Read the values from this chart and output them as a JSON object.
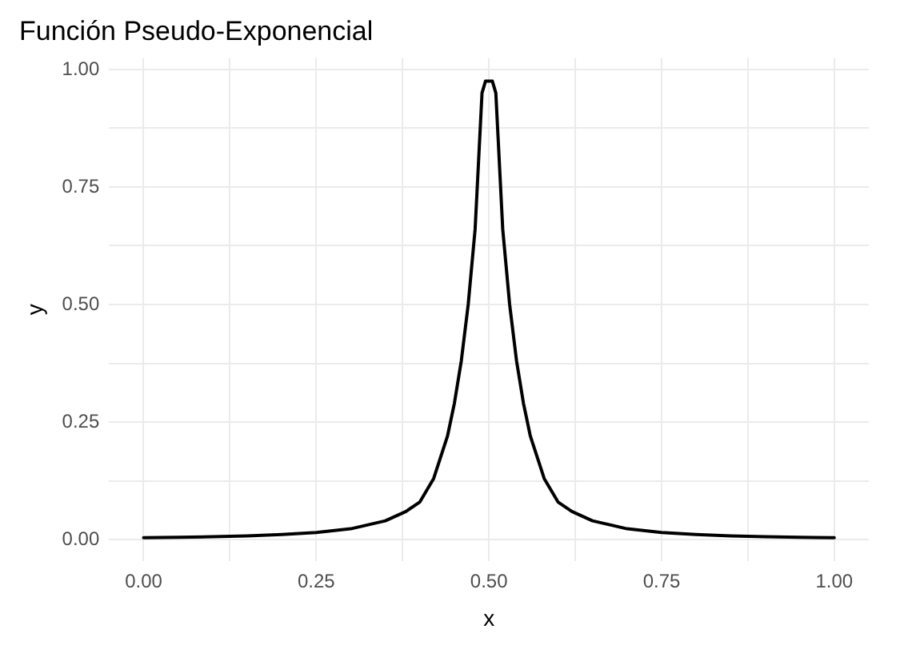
{
  "chart_data": {
    "type": "line",
    "title": "Función Pseudo-Exponencial",
    "xlabel": "x",
    "ylabel": "y",
    "grid": true,
    "legend": false,
    "marker": "none",
    "line_style": "solid",
    "xlim": [
      -0.05,
      1.05
    ],
    "ylim": [
      -0.045,
      1.024
    ],
    "xticks": [
      {
        "value": 0,
        "label": "0.00"
      },
      {
        "value": 0.125,
        "label": null
      },
      {
        "value": 0.25,
        "label": "0.25"
      },
      {
        "value": 0.375,
        "label": null
      },
      {
        "value": 0.5,
        "label": "0.50"
      },
      {
        "value": 0.625,
        "label": null
      },
      {
        "value": 0.75,
        "label": "0.75"
      },
      {
        "value": 0.875,
        "label": null
      },
      {
        "value": 1,
        "label": "1.00"
      }
    ],
    "yticks": [
      {
        "value": 0,
        "label": "0.00"
      },
      {
        "value": 0.125,
        "label": null
      },
      {
        "value": 0.25,
        "label": "0.25"
      },
      {
        "value": 0.375,
        "label": null
      },
      {
        "value": 0.5,
        "label": "0.50"
      },
      {
        "value": 0.625,
        "label": null
      },
      {
        "value": 0.75,
        "label": "0.75"
      },
      {
        "value": 0.875,
        "label": null
      },
      {
        "value": 1,
        "label": "1.00"
      }
    ],
    "series": [
      {
        "color": "#000000",
        "x": [
          0,
          0.05,
          0.1,
          0.15,
          0.2,
          0.25,
          0.3,
          0.35,
          0.38,
          0.4,
          0.42,
          0.44,
          0.45,
          0.46,
          0.47,
          0.48,
          0.49,
          0.495,
          0.5,
          0.505,
          0.51,
          0.52,
          0.53,
          0.54,
          0.55,
          0.56,
          0.58,
          0.6,
          0.62,
          0.65,
          0.7,
          0.75,
          0.8,
          0.85,
          0.9,
          0.95,
          1
        ],
        "values": [
          0.004,
          0.005,
          0.006,
          0.008,
          0.011,
          0.015,
          0.023,
          0.04,
          0.06,
          0.08,
          0.13,
          0.22,
          0.29,
          0.38,
          0.5,
          0.66,
          0.95,
          0.975,
          0.975,
          0.975,
          0.95,
          0.66,
          0.5,
          0.38,
          0.29,
          0.22,
          0.13,
          0.08,
          0.06,
          0.04,
          0.023,
          0.015,
          0.011,
          0.008,
          0.006,
          0.005,
          0.004
        ]
      }
    ]
  }
}
